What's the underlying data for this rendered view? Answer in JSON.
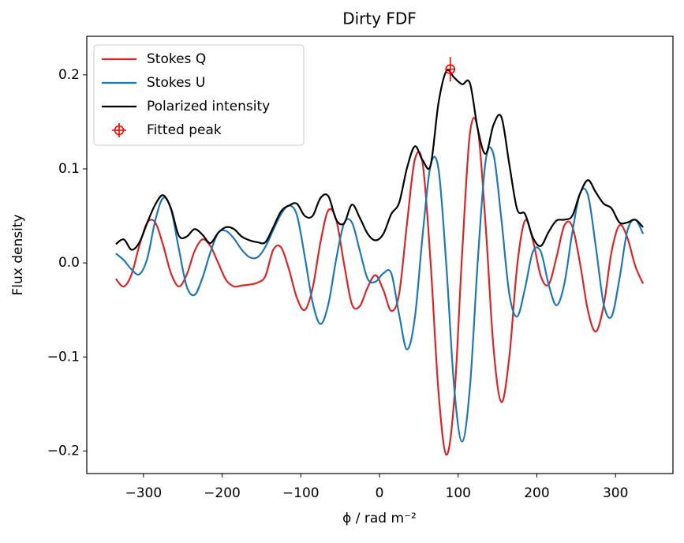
{
  "chart_data": {
    "type": "line",
    "title": "Dirty FDF",
    "xlabel": "ϕ / rad m⁻²",
    "ylabel": "Flux density",
    "xlim": [
      -372,
      373
    ],
    "ylim": [
      -0.224,
      0.241
    ],
    "xticks": [
      {
        "value": -300,
        "label": "−300"
      },
      {
        "value": -200,
        "label": "−200"
      },
      {
        "value": -100,
        "label": "−100"
      },
      0,
      100,
      200,
      300
    ],
    "yticks": [
      {
        "value": -0.2,
        "label": "−0.2"
      },
      {
        "value": -0.1,
        "label": "−0.1"
      },
      {
        "value": 0,
        "label": "0.0"
      },
      0.1,
      0.2
    ],
    "grid": false,
    "legend": "upper left",
    "x": [
      -335,
      -325,
      -315,
      -305,
      -295,
      -285,
      -275,
      -265,
      -255,
      -245,
      -235,
      -225,
      -215,
      -205,
      -195,
      -185,
      -175,
      -165,
      -155,
      -145,
      -135,
      -125,
      -115,
      -105,
      -95,
      -85,
      -75,
      -65,
      -55,
      -45,
      -35,
      -25,
      -15,
      -5,
      5,
      15,
      25,
      35,
      45,
      55,
      65,
      75,
      85,
      95,
      105,
      115,
      125,
      135,
      145,
      155,
      165,
      175,
      185,
      195,
      205,
      215,
      225,
      235,
      245,
      255,
      265,
      275,
      285,
      295,
      305,
      315,
      325,
      335
    ],
    "series": [
      {
        "name": "Stokes Q",
        "color": "#d62728",
        "values": [
          -0.017,
          -0.025,
          -0.012,
          0.019,
          0.043,
          0.043,
          0.019,
          -0.011,
          -0.025,
          -0.0125,
          0.0125,
          0.025,
          0.018,
          0,
          -0.018,
          -0.025,
          -0.024,
          -0.023,
          -0.021,
          -0.014,
          0.014,
          0.0165,
          -0.007,
          -0.037,
          -0.05,
          -0.027,
          0.022,
          0.056,
          0.046,
          -0.001,
          -0.044,
          -0.046,
          -0.026,
          -0.013,
          -0.029,
          -0.051,
          -0.033,
          0.042,
          0.11,
          0.105,
          0,
          -0.137,
          -0.204,
          -0.145,
          0.009,
          0.138,
          0.142,
          0.039,
          -0.091,
          -0.148,
          -0.1,
          -0.003,
          0.045,
          0.024,
          -0.014,
          -0.023,
          0.006,
          0.04,
          0.039,
          -0.001,
          -0.051,
          -0.073,
          -0.045,
          0.012,
          0.04,
          0.027,
          -0.003,
          -0.022
        ]
      },
      {
        "name": "Stokes U",
        "color": "#1f77b4",
        "values": [
          0.01,
          0.003,
          -0.007,
          -0.012,
          0.005,
          0.045,
          0.069,
          0.057,
          0.015,
          -0.025,
          -0.034,
          -0.016,
          0.011,
          0.032,
          0.034,
          0.026,
          0.014,
          0.006,
          0.006,
          0.017,
          0.035,
          0.052,
          0.061,
          0.051,
          0.007,
          -0.042,
          -0.065,
          -0.044,
          0.004,
          0.042,
          0.043,
          0.013,
          -0.017,
          -0.02,
          -0.011,
          -0.011,
          -0.055,
          -0.092,
          -0.058,
          0.031,
          0.104,
          0.1,
          -0.003,
          -0.133,
          -0.19,
          -0.132,
          0.003,
          0.109,
          0.115,
          0.046,
          -0.033,
          -0.057,
          -0.027,
          0.012,
          0.012,
          -0.023,
          -0.045,
          -0.022,
          0.032,
          0.074,
          0.072,
          0.017,
          -0.044,
          -0.057,
          -0.017,
          0.034,
          0.046,
          0.031
        ]
      },
      {
        "name": "Polarized intensity",
        "color": "#000000",
        "values": [
          0.02,
          0.025,
          0.014,
          0.022,
          0.043,
          0.062,
          0.072,
          0.058,
          0.029,
          0.028,
          0.036,
          0.03,
          0.021,
          0.032,
          0.038,
          0.036,
          0.028,
          0.024,
          0.022,
          0.022,
          0.038,
          0.055,
          0.061,
          0.063,
          0.05,
          0.05,
          0.069,
          0.071,
          0.046,
          0.042,
          0.062,
          0.048,
          0.031,
          0.024,
          0.031,
          0.052,
          0.064,
          0.101,
          0.124,
          0.109,
          0.104,
          0.17,
          0.204,
          0.197,
          0.19,
          0.191,
          0.142,
          0.116,
          0.147,
          0.155,
          0.105,
          0.057,
          0.052,
          0.027,
          0.018,
          0.033,
          0.045,
          0.046,
          0.05,
          0.074,
          0.088,
          0.075,
          0.063,
          0.058,
          0.043,
          0.043,
          0.046,
          0.038
        ]
      }
    ],
    "peak": {
      "name": "Fitted peak",
      "color": "#ff0000",
      "x": 90,
      "y": 0.206,
      "xerr": 5,
      "yerr": 0.013
    }
  }
}
